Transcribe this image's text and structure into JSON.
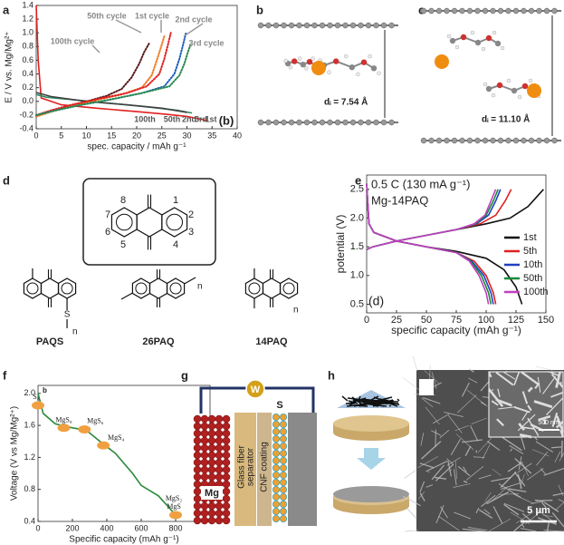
{
  "panel_labels": [
    "a",
    "b",
    "c",
    "d",
    "e",
    "f",
    "g",
    "h",
    "i"
  ],
  "chart_data": [
    {
      "type": "line",
      "xlabel": "spec. capacity / mAh g⁻¹",
      "ylabel": "E / V vs. Mg/Mg²⁺",
      "xlim": [
        0,
        40
      ],
      "xticks": [
        0,
        5,
        10,
        15,
        20,
        25,
        30,
        35,
        40
      ],
      "ylim": [
        -0.4,
        1.4
      ],
      "yticks": [
        -0.4,
        -0.2,
        {
          "value": 0,
          "label": "0.0"
        },
        0.2,
        0.4,
        0.6,
        0.8,
        {
          "value": 1,
          "label": "1.0"
        },
        1.2,
        1.4
      ],
      "annotations": [
        "50th cycle",
        "1st cycle",
        "2nd cycle",
        "3rd cycle",
        "100th cycle",
        "100th",
        "50th",
        "2nd",
        "3rd",
        "1st",
        "(b)"
      ],
      "series": [
        {
          "color": "#e02020",
          "style": "solid",
          "x": [
            0,
            0.4,
            1,
            5,
            12,
            20,
            26,
            30,
            34
          ],
          "values": [
            1.4,
            0.6,
            0.05,
            -0.05,
            -0.1,
            -0.15,
            -0.19,
            -0.22,
            -0.28
          ]
        },
        {
          "color": "#2a8a60",
          "style": "solid",
          "x": [
            0,
            2,
            8,
            15,
            22,
            28,
            31
          ],
          "values": [
            0.1,
            0.06,
            0.02,
            -0.03,
            -0.08,
            -0.13,
            -0.17
          ]
        },
        {
          "color": "#404040",
          "style": "solid",
          "x": [
            0,
            3,
            10,
            18,
            25,
            30
          ],
          "values": [
            0.13,
            0.07,
            0.0,
            -0.05,
            -0.1,
            -0.16
          ]
        },
        {
          "color": "#5a1a1a",
          "style": "dotted",
          "x": [
            0,
            3,
            6,
            10,
            14,
            17,
            19,
            20.5,
            21.5,
            22.5
          ],
          "values": [
            -0.22,
            -0.15,
            -0.08,
            0.0,
            0.08,
            0.18,
            0.35,
            0.55,
            0.72,
            0.85
          ]
        },
        {
          "color": "#f07820",
          "style": "dotted",
          "x": [
            0,
            3,
            7,
            12,
            17,
            21,
            23,
            24,
            24.8,
            25.5
          ],
          "values": [
            -0.22,
            -0.15,
            -0.07,
            0.02,
            0.1,
            0.2,
            0.38,
            0.6,
            0.78,
            0.95
          ]
        },
        {
          "color": "#e02020",
          "style": "dotted",
          "x": [
            0,
            3,
            7,
            12,
            18,
            22,
            24.5,
            25.5,
            26.2,
            26.8
          ],
          "values": [
            -0.2,
            -0.13,
            -0.05,
            0.03,
            0.12,
            0.22,
            0.4,
            0.62,
            0.82,
            1.0
          ]
        },
        {
          "color": "#2060c0",
          "style": "dotted",
          "x": [
            0,
            4,
            9,
            15,
            21,
            25.5,
            27.5,
            28.5,
            29.2,
            29.8
          ],
          "values": [
            -0.2,
            -0.13,
            -0.05,
            0.03,
            0.12,
            0.22,
            0.4,
            0.62,
            0.82,
            1.0
          ]
        },
        {
          "color": "#2a8a50",
          "style": "dotted",
          "x": [
            0,
            4,
            9,
            15,
            21,
            26.5,
            28.5,
            29.5,
            30.2,
            30.8
          ],
          "values": [
            -0.2,
            -0.13,
            -0.05,
            0.03,
            0.12,
            0.22,
            0.38,
            0.55,
            0.72,
            0.85
          ]
        }
      ]
    },
    {
      "type": "line",
      "title": "0.5 C (130 mA g⁻¹)",
      "subtitle": "Mg-14PAQ",
      "annotations": [
        "(d)"
      ],
      "xlabel": "specific capacity (mAh g⁻¹)",
      "ylabel": "potential (V)",
      "xlim": [
        0,
        150
      ],
      "xticks": [
        0,
        25,
        50,
        75,
        100,
        125,
        150
      ],
      "ylim": [
        0.35,
        2.75
      ],
      "yticks": [
        0.5,
        {
          "value": 1,
          "label": "1.0"
        },
        1.5,
        {
          "value": 2,
          "label": "2.0"
        },
        2.5
      ],
      "legend": "right",
      "series": [
        {
          "name": "1st",
          "color": "#111111",
          "x": [
            0,
            5,
            25,
            50,
            75,
            100,
            120,
            135,
            148,
            null,
            0,
            2,
            6,
            25,
            50,
            75,
            100,
            115,
            125,
            130
          ],
          "values": [
            1.45,
            1.5,
            1.6,
            1.7,
            1.8,
            1.9,
            2.0,
            2.2,
            2.5,
            null,
            2.5,
            1.9,
            1.75,
            1.6,
            1.5,
            1.42,
            1.3,
            1.1,
            0.8,
            0.5
          ]
        },
        {
          "name": "5th",
          "color": "#e02020",
          "x": [
            0,
            5,
            25,
            50,
            75,
            95,
            108,
            116,
            121,
            null,
            0,
            2,
            6,
            25,
            50,
            75,
            90,
            100,
            106,
            108
          ],
          "values": [
            1.45,
            1.5,
            1.6,
            1.7,
            1.8,
            1.9,
            2.05,
            2.3,
            2.5,
            null,
            2.6,
            1.9,
            1.75,
            1.6,
            1.5,
            1.4,
            1.25,
            1.0,
            0.7,
            0.5
          ]
        },
        {
          "name": "10th",
          "color": "#2040c0",
          "x": [
            0,
            5,
            25,
            50,
            75,
            92,
            102,
            108,
            112,
            null,
            0,
            2,
            6,
            25,
            50,
            75,
            88,
            98,
            104,
            106
          ],
          "values": [
            1.45,
            1.5,
            1.6,
            1.7,
            1.8,
            1.9,
            2.05,
            2.3,
            2.5,
            null,
            2.6,
            1.9,
            1.75,
            1.6,
            1.5,
            1.4,
            1.25,
            1.0,
            0.7,
            0.5
          ]
        },
        {
          "name": "50th",
          "color": "#1a8a3a",
          "x": [
            0,
            5,
            25,
            50,
            75,
            91,
            100,
            106,
            110,
            null,
            0,
            2,
            6,
            25,
            50,
            75,
            87,
            96,
            102,
            104
          ],
          "values": [
            1.45,
            1.5,
            1.6,
            1.7,
            1.8,
            1.9,
            2.05,
            2.3,
            2.5,
            null,
            2.6,
            1.9,
            1.75,
            1.6,
            1.5,
            1.4,
            1.25,
            1.0,
            0.7,
            0.5
          ]
        },
        {
          "name": "100th",
          "color": "#c040c0",
          "x": [
            0,
            5,
            25,
            50,
            75,
            90,
            99,
            104,
            108,
            null,
            0,
            2,
            6,
            25,
            50,
            75,
            86,
            94,
            100,
            102
          ],
          "values": [
            1.45,
            1.5,
            1.6,
            1.7,
            1.8,
            1.9,
            2.05,
            2.3,
            2.5,
            null,
            2.6,
            1.9,
            1.75,
            1.6,
            1.5,
            1.4,
            1.25,
            1.0,
            0.7,
            0.5
          ]
        }
      ]
    },
    {
      "type": "line",
      "xlabel": "Specific capacity (mAh g⁻¹)",
      "ylabel": "Voltage (V vs Mg/Mg²⁺)",
      "annotations": [
        "b"
      ],
      "xlim": [
        0,
        1000
      ],
      "xticks": [
        0,
        200,
        400,
        600,
        800
      ],
      "ylim": [
        0.4,
        2.1
      ],
      "yticks": [
        0.4,
        0.8,
        1.2,
        1.6,
        {
          "value": 2,
          "label": "2.0"
        }
      ],
      "series": [
        {
          "color": "#2a8a3a",
          "x": [
            0,
            30,
            100,
            200,
            280,
            360,
            450,
            550,
            600,
            700,
            800
          ],
          "values": [
            2.0,
            1.75,
            1.62,
            1.57,
            1.54,
            1.4,
            1.25,
            1.0,
            0.85,
            0.72,
            0.48
          ]
        }
      ],
      "points": {
        "color": "#f0a040",
        "x": [
          0,
          150,
          270,
          380,
          800
        ],
        "values": [
          1.85,
          1.57,
          1.55,
          1.35,
          0.48
        ],
        "labels": [
          [
            "S₈"
          ],
          [
            "MgS₈"
          ],
          [
            "MgS₆"
          ],
          [
            "MgS₄"
          ],
          [
            "MgS₂",
            "MgS"
          ]
        ]
      }
    }
  ],
  "panel_b": {
    "label": "dᵢ = 7.54 Å"
  },
  "panel_c": {
    "label": "dᵢ = 11.10 Å"
  },
  "panel_d": {
    "atom_numbers": [
      "1",
      "2",
      "3",
      "4",
      "5",
      "6",
      "7",
      "8"
    ],
    "substituent": "S",
    "repeat": "n",
    "polymers": [
      "PAQS",
      "26PAQ",
      "14PAQ"
    ]
  },
  "panel_g": {
    "meter": "W",
    "anode": "Mg",
    "separator": [
      "Glass fiber",
      "separator"
    ],
    "coating": "CNF coating",
    "cathode": "S"
  },
  "panel_i": {
    "inset_scale": "500 nm",
    "scale": "5 μm"
  }
}
